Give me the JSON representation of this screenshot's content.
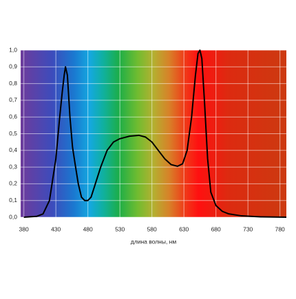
{
  "chart_data": {
    "type": "line",
    "x_label": "длина волны, нм",
    "x": [
      380,
      400,
      410,
      420,
      430,
      436,
      440,
      443,
      445,
      448,
      452,
      456,
      460,
      465,
      470,
      475,
      480,
      485,
      490,
      500,
      510,
      520,
      530,
      545,
      560,
      570,
      580,
      590,
      600,
      610,
      620,
      628,
      635,
      642,
      648,
      652,
      655,
      658,
      662,
      667,
      672,
      680,
      690,
      700,
      720,
      750,
      790
    ],
    "series": [
      {
        "color": "#000000",
        "values": [
          0,
          0.005,
          0.02,
          0.1,
          0.35,
          0.6,
          0.75,
          0.85,
          0.9,
          0.85,
          0.6,
          0.42,
          0.32,
          0.2,
          0.12,
          0.1,
          0.1,
          0.12,
          0.18,
          0.3,
          0.4,
          0.45,
          0.47,
          0.485,
          0.49,
          0.48,
          0.45,
          0.4,
          0.35,
          0.315,
          0.305,
          0.32,
          0.4,
          0.6,
          0.85,
          0.98,
          1.0,
          0.95,
          0.7,
          0.35,
          0.15,
          0.07,
          0.035,
          0.02,
          0.008,
          0.002,
          0
        ]
      }
    ],
    "xlim": [
      375,
      790
    ],
    "xticks": [
      380,
      430,
      480,
      530,
      580,
      630,
      680,
      730,
      780
    ],
    "ylim": [
      0,
      1
    ],
    "yticks": [
      {
        "value": 0,
        "label": "0,0"
      },
      {
        "value": 0.1,
        "label": "0,1"
      },
      {
        "value": 0.2,
        "label": "0,2"
      },
      {
        "value": 0.3,
        "label": "0,3"
      },
      {
        "value": 0.4,
        "label": "0,4"
      },
      {
        "value": 0.5,
        "label": "0,5"
      },
      {
        "value": 0.6,
        "label": "0,6"
      },
      {
        "value": 0.7,
        "label": "0,7"
      },
      {
        "value": 0.8,
        "label": "0,8"
      },
      {
        "value": 0.9,
        "label": "0,9"
      },
      {
        "value": 1,
        "label": "1,0"
      }
    ],
    "grid": true
  }
}
